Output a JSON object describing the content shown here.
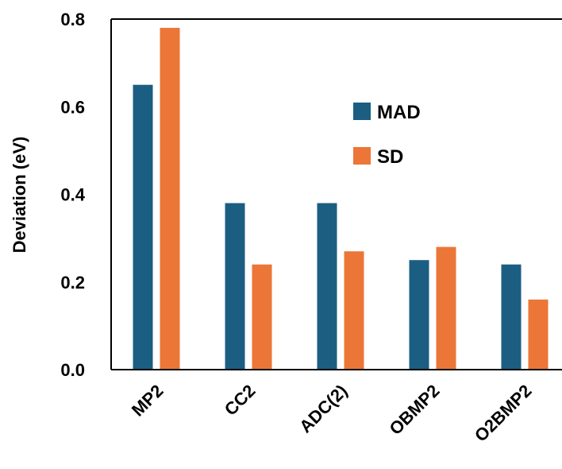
{
  "chart_data": {
    "type": "bar",
    "title": "",
    "xlabel": "",
    "ylabel": "Deviation (eV)",
    "ylim": [
      0,
      0.8
    ],
    "yticks": [
      "0.0",
      "0.2",
      "0.4",
      "0.6",
      "0.8"
    ],
    "categories": [
      "MP2",
      "CC2",
      "ADC(2)",
      "OBMP2",
      "O2BMP2"
    ],
    "series": [
      {
        "name": "MAD",
        "values": [
          0.65,
          0.38,
          0.38,
          0.25,
          0.24
        ],
        "color": "#1b5e82"
      },
      {
        "name": "SD",
        "values": [
          0.78,
          0.24,
          0.27,
          0.28,
          0.16
        ],
        "color": "#eb7637"
      }
    ],
    "grid": false,
    "legend_position": "upper-right"
  }
}
